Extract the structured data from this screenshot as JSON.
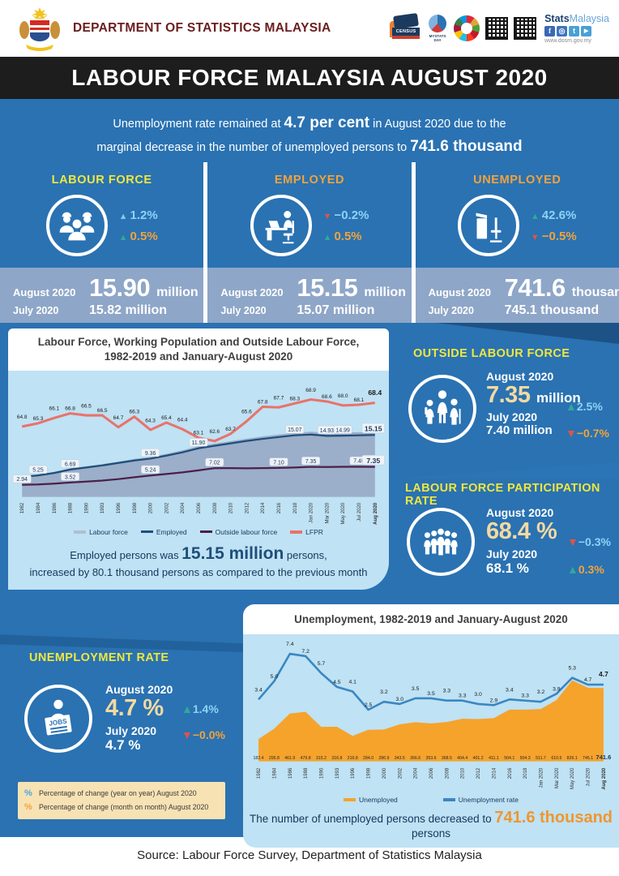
{
  "header": {
    "dept_title": "DEPARTMENT OF STATISTICS MALAYSIA",
    "brand_bold": "Stats",
    "brand_light": "Malaysia",
    "website": "www.dosm.gov.my",
    "census_label": "CENSUS",
    "mystats_label": "MYSTATS DAY",
    "social": {
      "facebook": "f",
      "instagram": "◎",
      "twitter": "t",
      "youtube": "▶"
    }
  },
  "banner": {
    "title": "LABOUR FORCE MALAYSIA AUGUST 2020"
  },
  "intro": {
    "line1_pre": "Unemployment rate remained at ",
    "line1_bold": "4.7 per cent",
    "line1_post": " in August 2020 due to the",
    "line2_pre": "marginal decrease in the number of unemployed persons to ",
    "line2_bold": "741.6 thousand"
  },
  "stats": [
    {
      "label": "LABOUR FORCE",
      "label_color": "#f0e73e",
      "yoy": {
        "arrow": "▲",
        "arrow_color": "#7cc9ec",
        "value": "1.2%",
        "text_color": "#8ed3f4"
      },
      "mom": {
        "arrow": "▲",
        "arrow_color": "#2fa99b",
        "value": "0.5%",
        "text_color": "#f2a33c"
      },
      "aug_label": "August 2020",
      "aug_value": "15.90",
      "aug_unit": "million",
      "jul_label": "July 2020",
      "jul_value": "15.82 million"
    },
    {
      "label": "EMPLOYED",
      "label_color": "#f2a33c",
      "yoy": {
        "arrow": "▼",
        "arrow_color": "#dd5449",
        "value": "−0.2%",
        "text_color": "#8ed3f4"
      },
      "mom": {
        "arrow": "▲",
        "arrow_color": "#2fa99b",
        "value": "0.5%",
        "text_color": "#f2a33c"
      },
      "aug_label": "August 2020",
      "aug_value": "15.15",
      "aug_unit": "million",
      "jul_label": "July 2020",
      "jul_value": "15.07 million"
    },
    {
      "label": "UNEMPLOYED",
      "label_color": "#f2a33c",
      "yoy": {
        "arrow": "▲",
        "arrow_color": "#2fa99b",
        "value": "42.6%",
        "text_color": "#8ed3f4"
      },
      "mom": {
        "arrow": "▼",
        "arrow_color": "#dd5449",
        "value": "−0.5%",
        "text_color": "#f2a33c"
      },
      "aug_label": "August 2020",
      "aug_value": "741.6",
      "aug_unit": "thousand",
      "jul_label": "July 2020",
      "jul_value": "745.1 thousand"
    }
  ],
  "outside_labour_force": {
    "heading": "OUTSIDE LABOUR FORCE",
    "aug_label": "August 2020",
    "aug_value": "7.35",
    "aug_unit": "million",
    "yoy": {
      "arrow": "▲",
      "arrow_color": "#2fa99b",
      "value": "2.5%",
      "text_color": "#8ed3f4"
    },
    "jul_label": "July 2020",
    "jul_value": "7.40 million",
    "mom": {
      "arrow": "▼",
      "arrow_color": "#dd5449",
      "value": "−0.7%",
      "text_color": "#f2a33c"
    }
  },
  "lfpr": {
    "heading": "LABOUR FORCE PARTICIPATION RATE",
    "aug_label": "August 2020",
    "aug_value": "68.4 %",
    "yoy": {
      "arrow": "▼",
      "arrow_color": "#dd5449",
      "value": "−0.3%",
      "text_color": "#8ed3f4"
    },
    "jul_label": "July 2020",
    "jul_value": "68.1 %",
    "mom": {
      "arrow": "▲",
      "arrow_color": "#2fa99b",
      "value": "0.3%",
      "text_color": "#f2a33c"
    }
  },
  "unemployment_rate": {
    "heading": "UNEMPLOYMENT RATE",
    "aug_label": "August 2020",
    "aug_value": "4.7 %",
    "yoy": {
      "arrow": "▲",
      "arrow_color": "#2fa99b",
      "value": "1.4%",
      "text_color": "#8ed3f4"
    },
    "jul_label": "July 2020",
    "jul_value": "4.7 %",
    "mom": {
      "arrow": "▼",
      "arrow_color": "#dd5449",
      "value": "−0.0%",
      "text_color": "#f2a33c"
    },
    "icon_text": "JOBS"
  },
  "note_box": {
    "rows": [
      {
        "symbol": "%",
        "color": "#4da6dc",
        "text": "Percentage of change (year on year) August 2020"
      },
      {
        "symbol": "%",
        "color": "#f2a33c",
        "text": "Percentage of change (month on month) August 2020"
      }
    ]
  },
  "chart_data": [
    {
      "type": "area",
      "title_line1": "Labour Force, Working Population and Outside Labour Force,",
      "title_line2": "1982-2019 and January-August 2020",
      "x_labels": [
        "1982",
        "1984",
        "1986",
        "1988",
        "1990",
        "1993",
        "1996",
        "1998",
        "2000",
        "2002",
        "2004",
        "2006",
        "2008",
        "2010",
        "2012",
        "2014",
        "2016",
        "2018",
        "Jan 2020",
        "Mar 2020",
        "May 2020",
        "Jul 2020",
        "Aug 2020"
      ],
      "grid": false,
      "legend_position": "bottom",
      "series": [
        {
          "name": "Labour force",
          "kind": "area",
          "color": "#98a9c5",
          "values": [
            5.1,
            5.5,
            6.1,
            7.0,
            7.5,
            8.0,
            8.6,
            9.3,
            9.8,
            10.55,
            11.4,
            12.4,
            13.05,
            13.65,
            14.25,
            14.8,
            15.25,
            15.65,
            15.95,
            15.7,
            15.75,
            15.82,
            15.9
          ]
        },
        {
          "name": "Employed",
          "kind": "line",
          "color": "#1f4e79",
          "values": [
            4.9,
            5.25,
            5.85,
            6.69,
            7.2,
            7.7,
            8.3,
            8.9,
            9.36,
            10.1,
            10.9,
            11.9,
            12.5,
            13.1,
            13.7,
            14.2,
            14.65,
            15.07,
            15.25,
            14.93,
            14.99,
            15.07,
            15.15
          ],
          "point_labels": [
            null,
            "5.25",
            null,
            "6.69",
            null,
            null,
            null,
            null,
            "9.36",
            null,
            null,
            "11.90",
            null,
            null,
            null,
            null,
            null,
            "15.07",
            null,
            "14.93",
            "14.99",
            null,
            "15.15"
          ]
        },
        {
          "name": "Outside labour force",
          "kind": "line",
          "color": "#4a2049",
          "values": [
            2.94,
            3.05,
            3.25,
            3.52,
            3.75,
            4.0,
            4.35,
            4.8,
            5.24,
            5.6,
            6.0,
            6.5,
            7.02,
            7.05,
            7.0,
            7.05,
            7.1,
            7.2,
            7.35,
            7.32,
            7.36,
            7.4,
            7.35
          ],
          "point_labels": [
            "2.94",
            null,
            null,
            "3.52",
            null,
            null,
            null,
            null,
            "5.24",
            null,
            null,
            null,
            "7.02",
            null,
            null,
            null,
            "7.10",
            null,
            "7.35",
            null,
            null,
            "7.40",
            "7.35"
          ]
        },
        {
          "name": "LFPR",
          "kind": "line",
          "color": "#e8736a",
          "axis": "right",
          "values": [
            64.8,
            65.3,
            66.1,
            66.8,
            66.5,
            66.5,
            64.7,
            66.3,
            64.3,
            65.4,
            64.4,
            63.1,
            62.6,
            63.7,
            65.6,
            67.8,
            67.7,
            68.3,
            68.9,
            68.6,
            68.0,
            68.1,
            68.4
          ],
          "point_labels": [
            "64.8",
            "65.3",
            "66.1",
            "66.8",
            "66.5",
            "66.5",
            "64.7",
            "66.3",
            "64.3",
            "65.4",
            "64.4",
            "63.1",
            "62.6",
            "63.7",
            "65.6",
            "67.8",
            "67.7",
            "68.3",
            "68.9",
            "68.6",
            "68.0",
            "68.1",
            "68.4"
          ]
        }
      ],
      "legend": [
        {
          "name": "Labour force",
          "color": "#b3bdd0",
          "shape": "bar"
        },
        {
          "name": "Employed",
          "color": "#1f4e79",
          "shape": "line"
        },
        {
          "name": "Outside labour force",
          "color": "#4a2049",
          "shape": "line"
        },
        {
          "name": "LFPR",
          "color": "#e8736a",
          "shape": "bar"
        }
      ],
      "footnote": {
        "pre": "Employed persons was ",
        "bold": "15.15 million",
        "post": " persons,",
        "line2": "increased by 80.1 thousand persons as compared to the previous month"
      }
    },
    {
      "type": "area+line",
      "title": "Unemployment, 1982-2019 and January-August 2020",
      "x_labels": [
        "1982",
        "1984",
        "1986",
        "1988",
        "1990",
        "1993",
        "1996",
        "1998",
        "2000",
        "2002",
        "2004",
        "2006",
        "2008",
        "2010",
        "2012",
        "2014",
        "2016",
        "2018",
        "Jan 2020",
        "Mar 2020",
        "May 2020",
        "Jul 2020",
        "Aug 2020"
      ],
      "grid": false,
      "legend_position": "bottom",
      "area": {
        "name": "Unemployed",
        "color": "#f5a32b",
        "unit": "thousand",
        "values": [
          182.4,
          295.8,
          461.9,
          479.8,
          315.2,
          316.8,
          216.8,
          284.0,
          286.9,
          343.5,
          366.6,
          353.6,
          368.5,
          404.4,
          401.2,
          411.1,
          504.1,
          504.3,
          511.7,
          610.5,
          826.1,
          745.1,
          741.6
        ]
      },
      "line": {
        "name": "Unemployment rate",
        "color": "#3a87c2",
        "unit": "%",
        "values": [
          3.4,
          5.0,
          7.4,
          7.2,
          5.7,
          4.5,
          4.1,
          2.5,
          3.2,
          3.0,
          3.5,
          3.5,
          3.3,
          3.3,
          3.0,
          2.9,
          3.4,
          3.3,
          3.2,
          3.9,
          5.3,
          4.7,
          4.7
        ]
      },
      "legend": [
        {
          "name": "Unemployed",
          "color": "#f5a32b",
          "shape": "bar"
        },
        {
          "name": "Unemployment rate",
          "color": "#3a87c2",
          "shape": "bar"
        }
      ],
      "footnote": {
        "pre": "The number of unemployed persons decreased to ",
        "bold": "741.6 thousand",
        "post": " persons"
      }
    }
  ],
  "footer": {
    "source": "Source: Labour Force Survey, Department of Statistics Malaysia"
  }
}
